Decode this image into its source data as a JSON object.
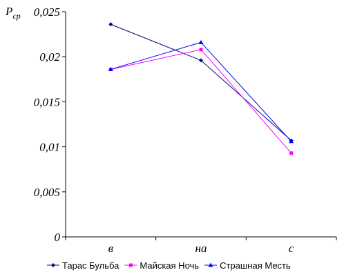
{
  "chart_data": {
    "type": "line",
    "y_label": "P",
    "y_label_subscript": "ср",
    "categories": [
      "в",
      "на",
      "с"
    ],
    "series": [
      {
        "name": "Тарас Бульба",
        "color": "#000080",
        "marker": "diamond",
        "values": [
          0.0236,
          0.0196,
          0.0107
        ]
      },
      {
        "name": "Майская Ночь",
        "color": "#ff00ff",
        "marker": "square",
        "values": [
          0.0186,
          0.0208,
          0.0093
        ]
      },
      {
        "name": "Страшная Месть",
        "color": "#0000ff",
        "marker": "triangle",
        "values": [
          0.0186,
          0.0216,
          0.0106
        ]
      }
    ],
    "ylim": [
      0,
      0.025
    ],
    "yticks": [
      0,
      {
        "value": 0.005,
        "label": "0,005"
      },
      {
        "value": 0.01,
        "label": "0,01"
      },
      {
        "value": 0.015,
        "label": "0,015"
      },
      {
        "value": 0.02,
        "label": "0,02"
      },
      {
        "value": 0.025,
        "label": "0,025"
      }
    ],
    "legend": "bottom"
  }
}
